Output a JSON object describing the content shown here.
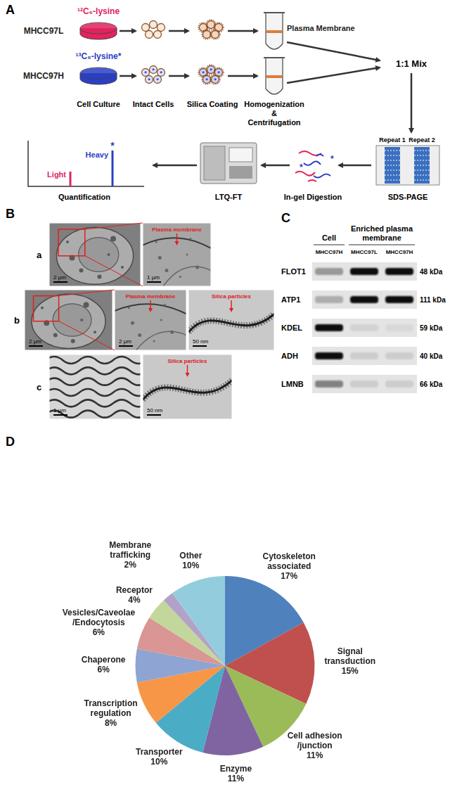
{
  "panel_labels": [
    "A",
    "B",
    "C",
    "D"
  ],
  "workflow": {
    "mark": "*",
    "light": {
      "isotope": "¹²C₆-lysine",
      "cell_line": "MHCC97L",
      "color": "#e0245e"
    },
    "heavy": {
      "isotope": "¹³C₆-lysine*",
      "cell_line": "MHCC97H",
      "color": "#2b3fc4"
    },
    "membrane_label": "Plasma Membrane",
    "mix": "1:1 Mix",
    "top_steps": [
      "Cell Culture",
      "Intact Cells",
      "Silica Coating",
      "Homogenization\n&\nCentrifugation"
    ],
    "gel_lanes": [
      "Repeat 1",
      "Repeat 2"
    ],
    "bottom_steps": [
      "Quantification",
      "LTQ-FT",
      "In-gel Digestion",
      "SDS-PAGE"
    ],
    "spectrum": {
      "light": "Light",
      "heavy": "Heavy"
    }
  },
  "micrographs": {
    "rows": [
      {
        "label": "a",
        "images": [
          {
            "scale_bar": "2 μm"
          },
          {
            "scale_bar": "1 μm",
            "annotation": "Plasma membrane"
          }
        ]
      },
      {
        "label": "b",
        "images": [
          {
            "scale_bar": "2 μm"
          },
          {
            "scale_bar": "2 μm",
            "annotation": "Plasma membrane"
          },
          {
            "scale_bar": "50 nm",
            "annotation": "Silica particles"
          }
        ]
      },
      {
        "label": "c",
        "images": [
          {
            "scale_bar": "1 μm"
          },
          {
            "scale_bar": "50 nm",
            "annotation": "Silica particles"
          }
        ]
      }
    ]
  },
  "western_blot": {
    "groups": [
      {
        "label": "Cell",
        "lanes": [
          "MHCC97H"
        ]
      },
      {
        "label": "Enriched plasma\nmembrane",
        "lanes": [
          "MHCC97L",
          "MHCC97H"
        ]
      }
    ],
    "rows": [
      {
        "protein": "FLOT1",
        "size": "48 kDa",
        "bands": [
          0.35,
          1,
          1
        ]
      },
      {
        "protein": "ATP1",
        "size": "111 kDa",
        "bands": [
          0.25,
          1,
          1
        ]
      },
      {
        "protein": "KDEL",
        "size": "59 kDa",
        "bands": [
          1,
          0.08,
          0.05
        ]
      },
      {
        "protein": "ADH",
        "size": "40 kDa",
        "bands": [
          1,
          0.1,
          0.1
        ]
      },
      {
        "protein": "LMNB",
        "size": "66 kDa",
        "bands": [
          0.45,
          0.1,
          0.1
        ]
      }
    ]
  },
  "chart_data": {
    "type": "pie",
    "categories": [
      "Cytoskeleton\nassociated",
      "Signal\ntransduction",
      "Cell adhesion\n/junction",
      "Enzyme",
      "Transporter",
      "Transcription\nregulation",
      "Chaperone",
      "Vesicles/Caveolae\n/Endocytosis",
      "Receptor",
      "Membrane\ntrafficking",
      "Other"
    ],
    "values": [
      17,
      15,
      11,
      11,
      10,
      8,
      6,
      6,
      4,
      2,
      10
    ],
    "value_labels": [
      "17%",
      "15%",
      "11%",
      "11%",
      "10%",
      "8%",
      "6%",
      "6%",
      "4%",
      "2%",
      "10%"
    ],
    "colors": [
      "#4F81BD",
      "#C0504D",
      "#9BBB59",
      "#8064A2",
      "#4BACC6",
      "#F79646",
      "#8EA4D2",
      "#D99694",
      "#C3D69B",
      "#B3A2C7",
      "#93CDDD"
    ],
    "data_labels": true
  }
}
